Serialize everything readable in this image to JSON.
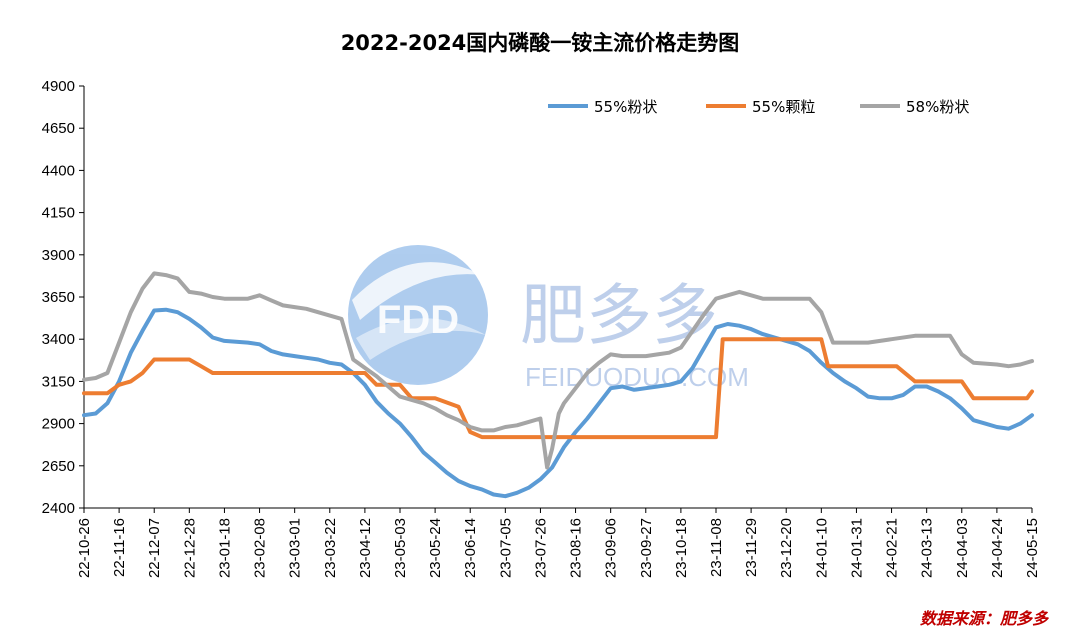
{
  "watermark": {
    "logo_text": "FDD",
    "brand": "肥多多",
    "url": "FEIDUODUO.COM"
  },
  "source_label": "数据来源：肥多多",
  "chart_data": {
    "type": "line",
    "title": "2022-2024国内磷酸一铵主流价格走势图",
    "xlabel": "",
    "ylabel": "",
    "ylim": [
      2400,
      4900
    ],
    "yticks": [
      2400,
      2650,
      2900,
      3150,
      3400,
      3650,
      3900,
      4150,
      4400,
      4650,
      4900
    ],
    "xlim": [
      "22-10-26",
      "24-05-15"
    ],
    "xticks": [
      "22-10-26",
      "22-11-16",
      "22-12-07",
      "22-12-28",
      "23-01-18",
      "23-02-08",
      "23-03-01",
      "23-03-22",
      "23-04-12",
      "23-05-03",
      "23-05-24",
      "23-06-14",
      "23-07-05",
      "23-07-26",
      "23-08-16",
      "23-09-06",
      "23-09-27",
      "23-10-18",
      "23-11-08",
      "23-11-29",
      "23-12-20",
      "24-01-10",
      "24-01-31",
      "24-02-21",
      "24-03-13",
      "24-04-03",
      "24-04-24",
      "24-05-15"
    ],
    "grid": false,
    "legend": "top-right",
    "series": [
      {
        "name": "55%粉状",
        "color": "#5b9bd5",
        "points": [
          [
            "22-10-26",
            2950
          ],
          [
            "22-11-02",
            2960
          ],
          [
            "22-11-09",
            3020
          ],
          [
            "22-11-16",
            3150
          ],
          [
            "22-11-23",
            3320
          ],
          [
            "22-11-30",
            3450
          ],
          [
            "22-12-07",
            3570
          ],
          [
            "22-12-14",
            3575
          ],
          [
            "22-12-21",
            3560
          ],
          [
            "22-12-28",
            3520
          ],
          [
            "23-01-04",
            3470
          ],
          [
            "23-01-11",
            3410
          ],
          [
            "23-01-18",
            3390
          ],
          [
            "23-01-25",
            3385
          ],
          [
            "23-02-01",
            3380
          ],
          [
            "23-02-08",
            3370
          ],
          [
            "23-02-15",
            3330
          ],
          [
            "23-02-22",
            3310
          ],
          [
            "23-03-01",
            3300
          ],
          [
            "23-03-08",
            3290
          ],
          [
            "23-03-15",
            3280
          ],
          [
            "23-03-22",
            3260
          ],
          [
            "23-03-29",
            3250
          ],
          [
            "23-04-05",
            3200
          ],
          [
            "23-04-12",
            3130
          ],
          [
            "23-04-19",
            3030
          ],
          [
            "23-04-26",
            2960
          ],
          [
            "23-05-03",
            2900
          ],
          [
            "23-05-10",
            2820
          ],
          [
            "23-05-17",
            2730
          ],
          [
            "23-05-24",
            2670
          ],
          [
            "23-05-31",
            2610
          ],
          [
            "23-06-07",
            2560
          ],
          [
            "23-06-14",
            2530
          ],
          [
            "23-06-21",
            2510
          ],
          [
            "23-06-28",
            2480
          ],
          [
            "23-07-05",
            2470
          ],
          [
            "23-07-12",
            2490
          ],
          [
            "23-07-19",
            2520
          ],
          [
            "23-07-26",
            2570
          ],
          [
            "23-08-02",
            2640
          ],
          [
            "23-08-09",
            2760
          ],
          [
            "23-08-16",
            2850
          ],
          [
            "23-08-23",
            2930
          ],
          [
            "23-08-30",
            3020
          ],
          [
            "23-09-06",
            3110
          ],
          [
            "23-09-13",
            3120
          ],
          [
            "23-09-20",
            3100
          ],
          [
            "23-09-27",
            3110
          ],
          [
            "23-10-04",
            3120
          ],
          [
            "23-10-11",
            3130
          ],
          [
            "23-10-18",
            3150
          ],
          [
            "23-10-25",
            3230
          ],
          [
            "23-11-01",
            3350
          ],
          [
            "23-11-08",
            3470
          ],
          [
            "23-11-15",
            3490
          ],
          [
            "23-11-22",
            3480
          ],
          [
            "23-11-29",
            3460
          ],
          [
            "23-12-06",
            3430
          ],
          [
            "23-12-13",
            3410
          ],
          [
            "23-12-20",
            3390
          ],
          [
            "23-12-27",
            3370
          ],
          [
            "24-01-03",
            3330
          ],
          [
            "24-01-10",
            3260
          ],
          [
            "24-01-17",
            3200
          ],
          [
            "24-01-24",
            3150
          ],
          [
            "24-01-31",
            3110
          ],
          [
            "24-02-07",
            3060
          ],
          [
            "24-02-14",
            3050
          ],
          [
            "24-02-21",
            3050
          ],
          [
            "24-02-28",
            3070
          ],
          [
            "24-03-06",
            3120
          ],
          [
            "24-03-13",
            3120
          ],
          [
            "24-03-20",
            3090
          ],
          [
            "24-03-27",
            3050
          ],
          [
            "24-04-03",
            2990
          ],
          [
            "24-04-10",
            2920
          ],
          [
            "24-04-17",
            2900
          ],
          [
            "24-04-24",
            2880
          ],
          [
            "24-05-01",
            2870
          ],
          [
            "24-05-08",
            2900
          ],
          [
            "24-05-15",
            2950
          ]
        ]
      },
      {
        "name": "55%颗粒",
        "color": "#ed7d31",
        "points": [
          [
            "22-10-26",
            3080
          ],
          [
            "22-11-09",
            3080
          ],
          [
            "22-11-16",
            3130
          ],
          [
            "22-11-23",
            3150
          ],
          [
            "22-11-30",
            3200
          ],
          [
            "22-12-07",
            3280
          ],
          [
            "22-12-28",
            3280
          ],
          [
            "23-01-04",
            3240
          ],
          [
            "23-01-11",
            3200
          ],
          [
            "23-03-22",
            3200
          ],
          [
            "23-04-12",
            3200
          ],
          [
            "23-04-19",
            3130
          ],
          [
            "23-05-03",
            3130
          ],
          [
            "23-05-10",
            3050
          ],
          [
            "23-05-24",
            3050
          ],
          [
            "23-06-07",
            3000
          ],
          [
            "23-06-14",
            2850
          ],
          [
            "23-06-21",
            2820
          ],
          [
            "23-11-08",
            2820
          ],
          [
            "23-11-12",
            3400
          ],
          [
            "24-01-10",
            3400
          ],
          [
            "24-01-14",
            3240
          ],
          [
            "24-02-24",
            3240
          ],
          [
            "24-03-06",
            3150
          ],
          [
            "24-04-03",
            3150
          ],
          [
            "24-04-10",
            3050
          ],
          [
            "24-05-12",
            3050
          ],
          [
            "24-05-15",
            3090
          ]
        ]
      },
      {
        "name": "58%粉状",
        "color": "#a5a5a5",
        "points": [
          [
            "22-10-26",
            3160
          ],
          [
            "22-11-02",
            3170
          ],
          [
            "22-11-09",
            3200
          ],
          [
            "22-11-16",
            3380
          ],
          [
            "22-11-23",
            3560
          ],
          [
            "22-11-30",
            3700
          ],
          [
            "22-12-07",
            3790
          ],
          [
            "22-12-14",
            3780
          ],
          [
            "22-12-21",
            3760
          ],
          [
            "22-12-28",
            3680
          ],
          [
            "23-01-04",
            3670
          ],
          [
            "23-01-11",
            3650
          ],
          [
            "23-01-18",
            3640
          ],
          [
            "23-01-25",
            3640
          ],
          [
            "23-02-01",
            3640
          ],
          [
            "23-02-08",
            3660
          ],
          [
            "23-02-15",
            3630
          ],
          [
            "23-02-22",
            3600
          ],
          [
            "23-03-01",
            3590
          ],
          [
            "23-03-08",
            3580
          ],
          [
            "23-03-15",
            3560
          ],
          [
            "23-03-22",
            3540
          ],
          [
            "23-03-29",
            3520
          ],
          [
            "23-04-05",
            3280
          ],
          [
            "23-04-12",
            3230
          ],
          [
            "23-04-19",
            3180
          ],
          [
            "23-04-26",
            3120
          ],
          [
            "23-05-03",
            3060
          ],
          [
            "23-05-10",
            3040
          ],
          [
            "23-05-17",
            3020
          ],
          [
            "23-05-24",
            2990
          ],
          [
            "23-05-31",
            2950
          ],
          [
            "23-06-07",
            2920
          ],
          [
            "23-06-14",
            2880
          ],
          [
            "23-06-21",
            2860
          ],
          [
            "23-06-28",
            2860
          ],
          [
            "23-07-05",
            2880
          ],
          [
            "23-07-12",
            2890
          ],
          [
            "23-07-19",
            2910
          ],
          [
            "23-07-26",
            2930
          ],
          [
            "23-07-30",
            2640
          ],
          [
            "23-08-02",
            2750
          ],
          [
            "23-08-06",
            2960
          ],
          [
            "23-08-09",
            3020
          ],
          [
            "23-08-16",
            3110
          ],
          [
            "23-08-23",
            3200
          ],
          [
            "23-08-30",
            3260
          ],
          [
            "23-09-06",
            3310
          ],
          [
            "23-09-13",
            3300
          ],
          [
            "23-09-20",
            3300
          ],
          [
            "23-09-27",
            3300
          ],
          [
            "23-10-04",
            3310
          ],
          [
            "23-10-11",
            3320
          ],
          [
            "23-10-18",
            3350
          ],
          [
            "23-10-25",
            3450
          ],
          [
            "23-11-01",
            3550
          ],
          [
            "23-11-08",
            3640
          ],
          [
            "23-11-15",
            3660
          ],
          [
            "23-11-22",
            3680
          ],
          [
            "23-11-29",
            3660
          ],
          [
            "23-12-06",
            3640
          ],
          [
            "23-12-13",
            3640
          ],
          [
            "23-12-20",
            3640
          ],
          [
            "24-01-03",
            3640
          ],
          [
            "24-01-10",
            3560
          ],
          [
            "24-01-17",
            3380
          ],
          [
            "24-02-07",
            3380
          ],
          [
            "24-02-21",
            3400
          ],
          [
            "24-03-06",
            3420
          ],
          [
            "24-03-27",
            3420
          ],
          [
            "24-04-03",
            3310
          ],
          [
            "24-04-10",
            3260
          ],
          [
            "24-04-24",
            3250
          ],
          [
            "24-05-01",
            3240
          ],
          [
            "24-05-08",
            3250
          ],
          [
            "24-05-15",
            3270
          ]
        ]
      }
    ]
  }
}
